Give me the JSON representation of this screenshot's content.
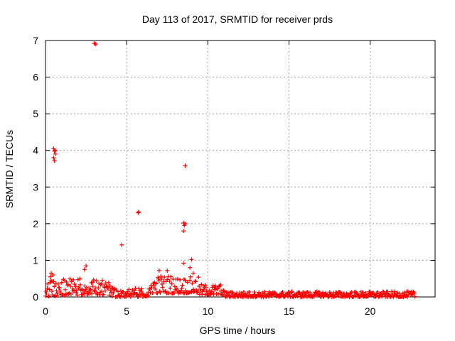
{
  "chart_data": {
    "type": "scatter",
    "title": "Day 113 of 2017, SRMTID for receiver prds",
    "xlabel": "GPS time / hours",
    "ylabel": "SRMTID / TECUs",
    "xlim": [
      0,
      24
    ],
    "ylim": [
      0,
      7
    ],
    "xticks": [
      0,
      5,
      10,
      15,
      20
    ],
    "yticks": [
      0,
      1,
      2,
      3,
      4,
      5,
      6,
      7
    ],
    "grid": true,
    "marker": "+",
    "color": "#ff0000",
    "series": [
      {
        "name": "SRMTID",
        "outliers": [
          [
            3.0,
            6.92
          ],
          [
            3.1,
            6.9
          ],
          [
            0.5,
            4.05
          ],
          [
            0.55,
            3.98
          ],
          [
            0.6,
            3.9
          ],
          [
            0.5,
            3.8
          ],
          [
            0.55,
            3.72
          ],
          [
            0.6,
            4.0
          ],
          [
            8.6,
            3.58
          ],
          [
            5.7,
            2.3
          ],
          [
            5.75,
            2.32
          ],
          [
            8.5,
            2.02
          ],
          [
            8.55,
            1.95
          ],
          [
            8.6,
            2.0
          ],
          [
            8.5,
            1.8
          ],
          [
            4.7,
            1.42
          ],
          [
            9.0,
            1.02
          ],
          [
            8.5,
            0.92
          ],
          [
            2.5,
            0.85
          ],
          [
            2.4,
            0.75
          ],
          [
            7.0,
            0.72
          ],
          [
            7.5,
            0.72
          ],
          [
            0.35,
            0.65
          ],
          [
            0.45,
            0.6
          ],
          [
            0.3,
            0.55
          ],
          [
            8.9,
            0.8
          ],
          [
            9.1,
            0.65
          ]
        ],
        "bands": [
          {
            "x0": 0.0,
            "x1": 1.0,
            "ymin": 0.02,
            "ymax": 0.45
          },
          {
            "x0": 1.0,
            "x1": 4.0,
            "ymin": 0.05,
            "ymax": 0.5
          },
          {
            "x0": 4.0,
            "x1": 6.5,
            "ymin": 0.0,
            "ymax": 0.25
          },
          {
            "x0": 6.5,
            "x1": 8.0,
            "ymin": 0.1,
            "ymax": 0.6
          },
          {
            "x0": 8.0,
            "x1": 9.5,
            "ymin": 0.1,
            "ymax": 0.55
          },
          {
            "x0": 9.5,
            "x1": 11.0,
            "ymin": 0.05,
            "ymax": 0.35
          },
          {
            "x0": 11.0,
            "x1": 22.8,
            "ymin": 0.0,
            "ymax": 0.15
          }
        ]
      }
    ]
  }
}
